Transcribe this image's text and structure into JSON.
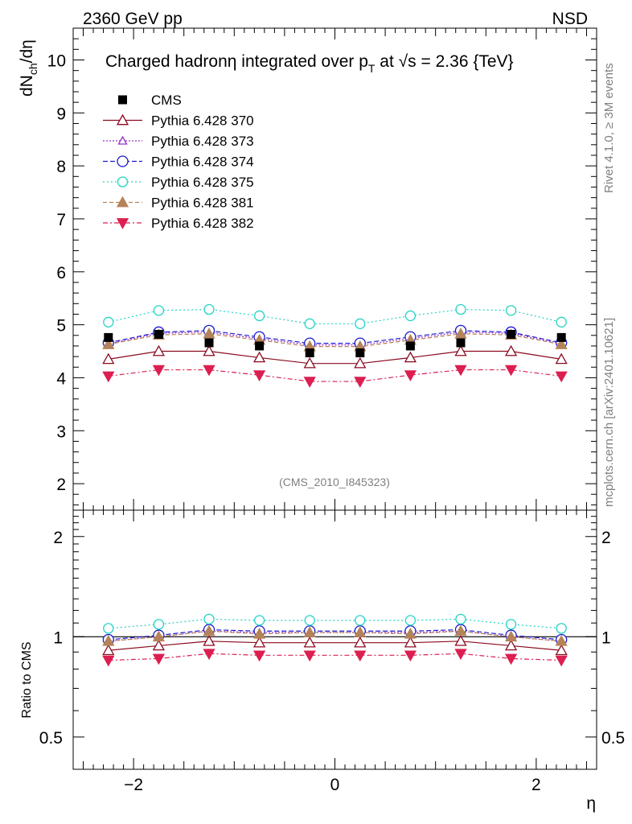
{
  "header": {
    "left_label": "2360 GeV pp",
    "right_label": "NSD"
  },
  "side_labels": {
    "rivet": "Rivet 4.1.0, ≥ 3M events",
    "mcplots": "mcplots.cern.ch [arXiv:2401.10621]"
  },
  "chart_data": {
    "type": "line",
    "title_parts": {
      "main": "Charged hadronη integrated over p",
      "sub": "T",
      "mid": " at ",
      "sqrt": "√s",
      "tail": " = 2.36 {TeV}"
    },
    "ylabel": {
      "dN": "dN",
      "sub": "ch",
      "tail": "/dη"
    },
    "ratio_ylabel": "Ratio to CMS",
    "xlabel": "η",
    "watermark": "(CMS_2010_I845323)",
    "xlim": [
      -2.6,
      2.6
    ],
    "ylim": [
      1.5,
      10.6
    ],
    "ratio_ylim": [
      0.4,
      2.4
    ],
    "x_ticks": [
      -2,
      0,
      2
    ],
    "x_tick_labels": [
      "−2",
      "0",
      "2"
    ],
    "y_ticks": [
      2,
      3,
      4,
      5,
      6,
      7,
      8,
      9,
      10
    ],
    "y_tick_labels": [
      "2",
      "3",
      "4",
      "5",
      "6",
      "7",
      "8",
      "9",
      "10"
    ],
    "ratio_ticks": [
      0.5,
      1,
      2
    ],
    "ratio_tick_labels": [
      "0.5",
      "1",
      "2"
    ],
    "x": [
      -2.25,
      -1.75,
      -1.25,
      -0.75,
      -0.25,
      0.25,
      0.75,
      1.25,
      1.75,
      2.25
    ],
    "data": {
      "name": "CMS",
      "color": "#000000",
      "values": [
        4.76,
        4.82,
        4.66,
        4.6,
        4.47,
        4.47,
        4.6,
        4.66,
        4.82,
        4.76
      ]
    },
    "series": [
      {
        "name": "Pythia 6.428 370",
        "color": "#8b0a1e",
        "dash": "",
        "marker": "tri-up-open",
        "values": [
          4.35,
          4.5,
          4.5,
          4.38,
          4.27,
          4.27,
          4.38,
          4.5,
          4.5,
          4.35
        ],
        "ratio": [
          0.91,
          0.94,
          0.97,
          0.96,
          0.96,
          0.96,
          0.96,
          0.97,
          0.94,
          0.91
        ]
      },
      {
        "name": "Pythia 6.428 373",
        "color": "#9932cc",
        "dash": "2,2",
        "marker": "tri-up-open-small",
        "values": [
          4.64,
          4.84,
          4.86,
          4.74,
          4.62,
          4.62,
          4.74,
          4.86,
          4.84,
          4.64
        ],
        "ratio": [
          0.97,
          1.0,
          1.04,
          1.03,
          1.03,
          1.03,
          1.03,
          1.04,
          1.0,
          0.97
        ]
      },
      {
        "name": "Pythia 6.428 374",
        "color": "#1a1acd",
        "dash": "6,3",
        "marker": "circle-open",
        "values": [
          4.66,
          4.86,
          4.89,
          4.77,
          4.65,
          4.65,
          4.77,
          4.89,
          4.86,
          4.66
        ],
        "ratio": [
          0.98,
          1.01,
          1.05,
          1.04,
          1.04,
          1.04,
          1.04,
          1.05,
          1.01,
          0.98
        ]
      },
      {
        "name": "Pythia 6.428 375",
        "color": "#20d4c4",
        "dash": "2,3",
        "marker": "circle-open-large",
        "values": [
          5.05,
          5.27,
          5.29,
          5.17,
          5.02,
          5.02,
          5.17,
          5.29,
          5.27,
          5.05
        ],
        "ratio": [
          1.06,
          1.09,
          1.13,
          1.12,
          1.12,
          1.12,
          1.12,
          1.13,
          1.09,
          1.06
        ]
      },
      {
        "name": "Pythia 6.428 381",
        "color": "#b5835a",
        "dash": "5,3",
        "marker": "tri-up-filled",
        "values": [
          4.63,
          4.81,
          4.83,
          4.71,
          4.59,
          4.59,
          4.71,
          4.83,
          4.81,
          4.63
        ],
        "ratio": [
          0.97,
          1.0,
          1.04,
          1.02,
          1.03,
          1.03,
          1.02,
          1.04,
          1.0,
          0.97
        ]
      },
      {
        "name": "Pythia 6.428 382",
        "color": "#dc1e50",
        "dash": "6,3,2,3",
        "marker": "tri-down-filled",
        "values": [
          4.03,
          4.15,
          4.15,
          4.05,
          3.93,
          3.93,
          4.05,
          4.15,
          4.15,
          4.03
        ],
        "ratio": [
          0.85,
          0.86,
          0.89,
          0.88,
          0.88,
          0.88,
          0.88,
          0.89,
          0.86,
          0.85
        ]
      }
    ]
  }
}
